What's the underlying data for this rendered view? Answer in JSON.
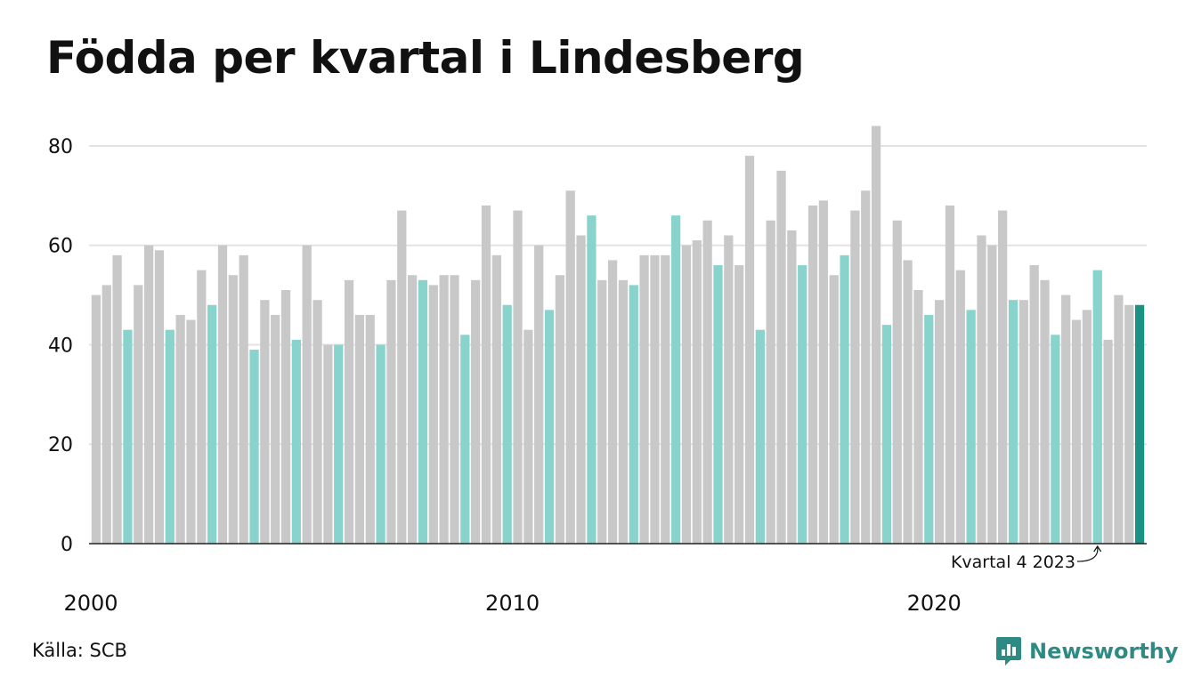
{
  "title": "Födda per kvartal i Lindesberg",
  "source": "Källa: SCB",
  "brand": {
    "name": "Newsworthy",
    "icon": "newsworthy-logo-icon",
    "color": "#2e8b84"
  },
  "chart_data": {
    "type": "bar",
    "title": "Födda per kvartal i Lindesberg",
    "xlabel": "",
    "ylabel": "",
    "ylim": [
      0,
      85
    ],
    "y_ticks": [
      0,
      20,
      40,
      60,
      80
    ],
    "x_ticks": [
      {
        "label": "2000",
        "year": 2000
      },
      {
        "label": "2010",
        "year": 2010
      },
      {
        "label": "2020",
        "year": 2020
      }
    ],
    "grid": true,
    "start": "2000 Q1",
    "colors": {
      "default": "#c8c8c8",
      "q4": "#88d3cb",
      "latest": "#1c9285"
    },
    "values": [
      50,
      52,
      58,
      43,
      52,
      60,
      59,
      43,
      46,
      45,
      55,
      48,
      60,
      54,
      58,
      39,
      49,
      46,
      51,
      41,
      60,
      49,
      40,
      40,
      53,
      46,
      46,
      40,
      53,
      67,
      54,
      53,
      52,
      54,
      54,
      42,
      53,
      68,
      58,
      48,
      67,
      43,
      60,
      47,
      54,
      71,
      62,
      66,
      53,
      57,
      53,
      52,
      58,
      58,
      58,
      66,
      60,
      61,
      65,
      56,
      62,
      56,
      78,
      43,
      65,
      75,
      63,
      56,
      68,
      69,
      54,
      58,
      67,
      71,
      84,
      44,
      65,
      57,
      51,
      46,
      49,
      68,
      55,
      47,
      62,
      60,
      67,
      49,
      49,
      56,
      53,
      42,
      50,
      45,
      47,
      55,
      41,
      50,
      48,
      48
    ],
    "annotation": {
      "text": "Kvartal 4 2023",
      "target": "2023 Q4"
    }
  }
}
